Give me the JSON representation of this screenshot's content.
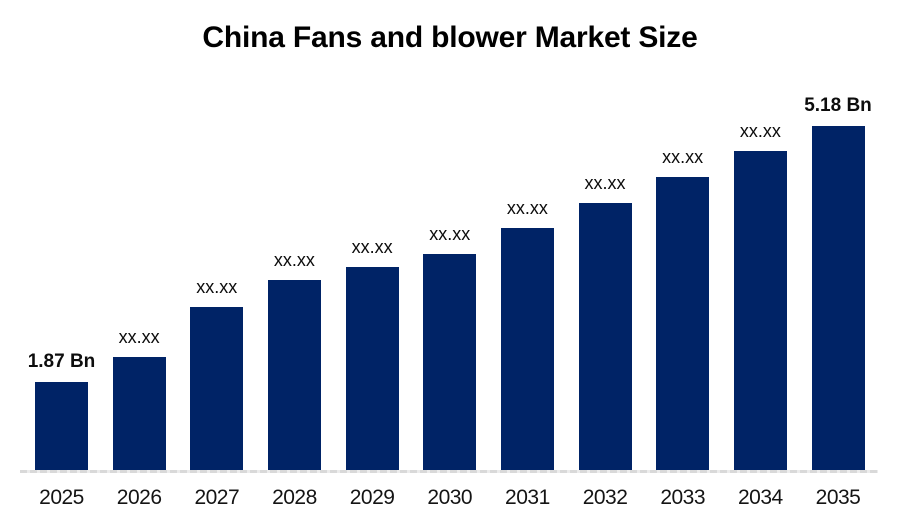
{
  "title": "China Fans and blower Market Size",
  "colors": {
    "bar": "#002366",
    "baseline": "#d9d9d9",
    "title_text": "#000000",
    "value_label_text": "#0d0d0d",
    "axis_label_text": "#141414",
    "background": "#ffffff"
  },
  "chart_data": {
    "type": "bar",
    "title": "China Fans and blower Market Size",
    "categories": [
      "2025",
      "2026",
      "2027",
      "2028",
      "2029",
      "2030",
      "2031",
      "2032",
      "2033",
      "2034",
      "2035"
    ],
    "value_labels": [
      "1.87 Bn",
      "xx.xx",
      "xx.xx",
      "xx.xx",
      "xx.xx",
      "xx.xx",
      "xx.xx",
      "xx.xx",
      "xx.xx",
      "xx.xx",
      "5.18 Bn"
    ],
    "values_bn": [
      1.87,
      2.19,
      2.84,
      3.19,
      3.36,
      3.53,
      3.86,
      4.18,
      4.52,
      4.86,
      5.18
    ],
    "values_note": "Only first (1.87 Bn) and last (5.18 Bn) values are labeled; intermediate bars are masked as xx.xx and their numeric values are estimated from bar heights",
    "unit": "Bn",
    "xlabel": "",
    "ylabel": "",
    "grid": false,
    "legend": false,
    "bar_color": "#002366"
  }
}
